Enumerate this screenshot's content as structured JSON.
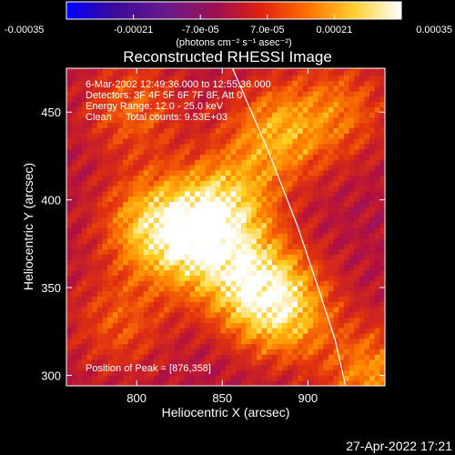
{
  "chart_data": {
    "type": "heatmap",
    "title": "Reconstructed RHESSI Image",
    "xlabel": "Heliocentric X (arcsec)",
    "ylabel": "Heliocentric Y (arcsec)",
    "xlim": [
      759,
      945
    ],
    "ylim": [
      294,
      475
    ],
    "x_ticks": [
      "800",
      "850",
      "900"
    ],
    "y_ticks": [
      "300",
      "350",
      "400",
      "450"
    ],
    "x_tick_values": [
      800,
      850,
      900
    ],
    "y_tick_values": [
      300,
      350,
      400,
      450
    ],
    "colorbar": {
      "range": [
        -0.00035,
        0.00035
      ],
      "tick_labels": [
        "-0.00035",
        "-0.00021",
        "-7.0e-05",
        "7.0e-05",
        "0.00021",
        "0.00035"
      ],
      "unit_label": "(photons cm⁻² s⁻¹ asec⁻²)",
      "colormap": [
        "#0000ff",
        "#4b0b7a",
        "#7a1c9a",
        "#b01040",
        "#e03010",
        "#ff8000",
        "#ffd020",
        "#ffffff"
      ]
    },
    "annotations": [
      "6-Mar-2002 12:49:36.000 to 12:55:36.000",
      "Detectors: 3F 4F 5F 6F 7F 8F, Att 0",
      "Energy Range: 12.0 - 25.0 keV",
      "Clean     Total counts: 9.53E+03"
    ],
    "peak_label": "Position of Peak = [876,358]",
    "peak": [
      876,
      358
    ],
    "limb_curve": [
      [
        856,
        475
      ],
      [
        876,
        430
      ],
      [
        894,
        385
      ],
      [
        906,
        350
      ],
      [
        916,
        320
      ],
      [
        922,
        294
      ]
    ],
    "bright_regions": [
      {
        "x": 808,
        "y": 386,
        "amplitude": 0.0003
      },
      {
        "x": 835,
        "y": 376,
        "amplitude": 0.00033
      },
      {
        "x": 852,
        "y": 398,
        "amplitude": 0.0003
      },
      {
        "x": 868,
        "y": 352,
        "amplitude": 0.00035
      },
      {
        "x": 888,
        "y": 336,
        "amplitude": 0.00028
      },
      {
        "x": 882,
        "y": 438,
        "amplitude": 0.00028
      },
      {
        "x": 798,
        "y": 452,
        "amplitude": 0.00018
      },
      {
        "x": 920,
        "y": 452,
        "amplitude": 0.00018
      },
      {
        "x": 790,
        "y": 330,
        "amplitude": 0.00016
      },
      {
        "x": 938,
        "y": 300,
        "amplitude": 0.00025
      }
    ]
  },
  "timestamp": "27-Apr-2022 17:21"
}
